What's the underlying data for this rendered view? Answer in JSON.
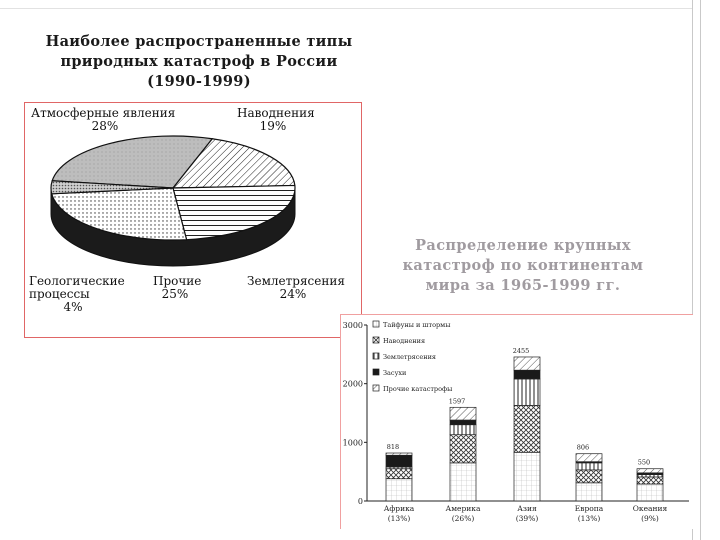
{
  "slide": {
    "title_left_lines": [
      "Наиболее распространенные типы",
      "природных катастроф в России",
      "(1990-1999)"
    ],
    "title_right_lines": [
      "Распределение крупных",
      "катастроф по континентам",
      "мира за 1965-1999 гг."
    ]
  },
  "chart_data": [
    {
      "type": "pie",
      "slices": [
        {
          "label": "Атмосферные явления",
          "value": 28
        },
        {
          "label": "Наводнения",
          "value": 19
        },
        {
          "label": "Землетрясения",
          "value": 24
        },
        {
          "label": "Прочие",
          "value": 25
        },
        {
          "label": "Геологические процессы",
          "value": 4
        }
      ],
      "label_texts": [
        {
          "lines": [
            "Атмосферные явления"
          ],
          "pct": "28%"
        },
        {
          "lines": [
            "Наводнения"
          ],
          "pct": "19%"
        },
        {
          "lines": [
            "Землетрясения"
          ],
          "pct": "24%"
        },
        {
          "lines": [
            "Прочие"
          ],
          "pct": "25%"
        },
        {
          "lines": [
            "Геологические",
            "процессы"
          ],
          "pct": "4%"
        }
      ],
      "style": "3d-monochrome-hatched"
    },
    {
      "type": "bar",
      "stacked": true,
      "categories": [
        "Африка",
        "Америка",
        "Азия",
        "Европа",
        "Океания"
      ],
      "category_shares": [
        "(13%)",
        "(26%)",
        "(39%)",
        "(13%)",
        "(9%)"
      ],
      "totals": [
        818,
        1597,
        2455,
        806,
        550
      ],
      "total_labels": [
        "818",
        "1597",
        "2455",
        "806",
        "550"
      ],
      "series": [
        {
          "name": "Тайфуны и штормы",
          "values": [
            380,
            650,
            830,
            310,
            290
          ]
        },
        {
          "name": "Наводнения",
          "values": [
            170,
            480,
            800,
            220,
            120
          ]
        },
        {
          "name": "Землетрясения",
          "values": [
            30,
            170,
            450,
            120,
            40
          ]
        },
        {
          "name": "Засухи",
          "values": [
            200,
            80,
            150,
            20,
            30
          ]
        },
        {
          "name": "Прочие катастрофы",
          "values": [
            38,
            217,
            225,
            136,
            70
          ]
        }
      ],
      "yticks": [
        "0",
        "1000",
        "2000",
        "3000"
      ],
      "ylim": [
        0,
        3000
      ],
      "legend_position": "top-left"
    }
  ]
}
